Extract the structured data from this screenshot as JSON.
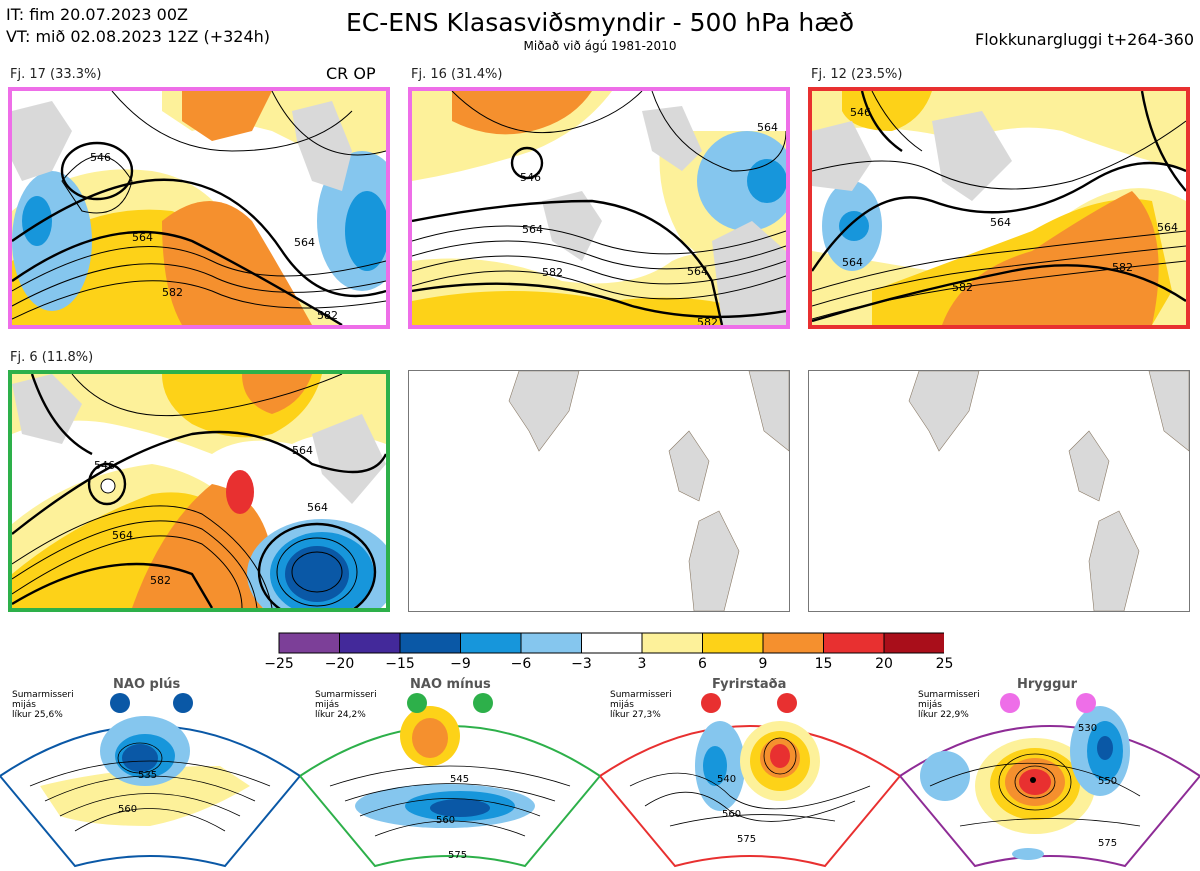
{
  "header": {
    "it": "IT: fim 20.07.2023 00Z",
    "vt": "VT: mið 02.08.2023 12Z  (+324h)",
    "title": "EC-ENS Klasasviðsmyndir - 500 hPa hæð",
    "subtitle": "Miðað við ágú 1981-2010",
    "window": "Flokkunargluggi t+264-360"
  },
  "clusters": [
    {
      "label": "Fj. 17 (33.3%)",
      "tag": "CR OP",
      "border_color": "#ee6ee8",
      "contours": [
        "546",
        "564",
        "582",
        "582",
        "564"
      ]
    },
    {
      "label": "Fj. 16 (31.4%)",
      "tag": "",
      "border_color": "#ee6ee8",
      "contours": [
        "546",
        "564",
        "564",
        "582",
        "582",
        "564"
      ]
    },
    {
      "label": "Fj. 12 (23.5%)",
      "tag": "",
      "border_color": "#e83030",
      "contours": [
        "546",
        "564",
        "564",
        "564",
        "582",
        "582"
      ]
    },
    {
      "label": "Fj. 6 (11.8%)",
      "tag": "",
      "border_color": "#2db04a",
      "contours": [
        "546",
        "564",
        "564",
        "564",
        "582"
      ]
    }
  ],
  "colorbar": {
    "ticks": [
      "−25",
      "−20",
      "−15",
      "−9",
      "−6",
      "−3",
      "3",
      "6",
      "9",
      "15",
      "20",
      "25"
    ],
    "colors": [
      "#7c3f98",
      "#43299a",
      "#0a58a6",
      "#1796db",
      "#85c6ee",
      "#ffffff",
      "#fdf19a",
      "#fdd218",
      "#f5902e",
      "#e83030",
      "#a90e1a"
    ]
  },
  "regimes": [
    {
      "name": "NAO plús",
      "season": "Sumarmisseri",
      "season2": "mijás",
      "prob": "líkur 25,6%",
      "color": "#0a58a6",
      "contours": [
        "535",
        "560"
      ]
    },
    {
      "name": "NAO mínus",
      "season": "Sumarmisseri",
      "season2": "mijás",
      "prob": "líkur 24,2%",
      "color": "#2db04a",
      "contours": [
        "545",
        "560",
        "575"
      ]
    },
    {
      "name": "Fyrirstaða",
      "season": "Sumarmisseri",
      "season2": "mijás",
      "prob": "líkur 27,3%",
      "color": "#e83030",
      "contours": [
        "540",
        "560",
        "575"
      ]
    },
    {
      "name": "Hryggur",
      "season": "Sumarmisseri",
      "season2": "mijás",
      "prob": "líkur 22,9%",
      "color": "#ee6ee8",
      "contours": [
        "530",
        "550",
        "575"
      ]
    }
  ]
}
